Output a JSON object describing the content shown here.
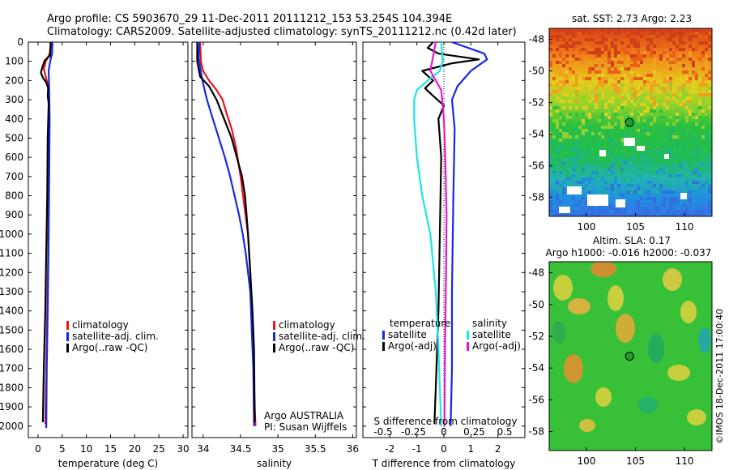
{
  "header": {
    "title_line1": "Argo profile: CS 5903670_29 11-Dec-2011 20111212_153 53.254S 104.394E",
    "title_line2": "Climatology: CARS2009. Satellite-adjusted climatology: synTS_20111212.nc (0.42d later)"
  },
  "credit": "©IMOS 18-Dec-2011 17:00:40",
  "colors": {
    "climatology": "#e8141e",
    "satellite": "#1528e6",
    "argo": "#000000",
    "cyan": "#19e6e6",
    "magenta": "#e619d2"
  },
  "chart_data": [
    {
      "type": "line",
      "name": "temperature-profile",
      "xlabel": "temperature (deg C)",
      "xlim": [
        -2,
        31
      ],
      "xticks": [
        "0",
        "5",
        "10",
        "15",
        "20",
        "25",
        "30"
      ],
      "ylim": [
        0,
        2060
      ],
      "yticks": [
        "0",
        "100",
        "200",
        "300",
        "400",
        "500",
        "600",
        "700",
        "800",
        "900",
        "1000",
        "1100",
        "1200",
        "1300",
        "1400",
        "1500",
        "1600",
        "1700",
        "1800",
        "1900",
        "2000"
      ],
      "legend": [
        "climatology",
        "satellite-adj. clim.",
        "Argo(..raw -QC)"
      ],
      "series": [
        {
          "name": "climatology",
          "color": "#e8141e",
          "points": [
            [
              2.7,
              0
            ],
            [
              2.4,
              60
            ],
            [
              1.6,
              100
            ],
            [
              1.2,
              140
            ],
            [
              1.6,
              180
            ],
            [
              2.0,
              220
            ],
            [
              2.3,
              300
            ],
            [
              2.3,
              500
            ],
            [
              2.2,
              800
            ],
            [
              2.1,
              1100
            ],
            [
              1.9,
              1400
            ],
            [
              1.7,
              1700
            ],
            [
              1.5,
              1990
            ]
          ]
        },
        {
          "name": "satellite-adj. clim.",
          "color": "#1528e6",
          "points": [
            [
              3.0,
              0
            ],
            [
              2.9,
              60
            ],
            [
              2.5,
              100
            ],
            [
              2.2,
              150
            ],
            [
              2.3,
              250
            ],
            [
              2.4,
              400
            ],
            [
              2.3,
              700
            ],
            [
              2.2,
              1000
            ],
            [
              2.0,
              1400
            ],
            [
              1.8,
              1700
            ],
            [
              1.7,
              2010
            ]
          ]
        },
        {
          "name": "Argo(..raw -QC)",
          "color": "#000000",
          "points": [
            [
              2.6,
              0
            ],
            [
              2.5,
              70
            ],
            [
              1.4,
              95
            ],
            [
              0.9,
              130
            ],
            [
              0.6,
              160
            ],
            [
              1.0,
              185
            ],
            [
              1.7,
              210
            ],
            [
              2.1,
              240
            ],
            [
              2.0,
              280
            ],
            [
              2.2,
              320
            ],
            [
              2.0,
              500
            ],
            [
              1.9,
              800
            ],
            [
              1.7,
              1100
            ],
            [
              1.5,
              1400
            ],
            [
              1.2,
              1700
            ],
            [
              1.0,
              1980
            ]
          ]
        }
      ]
    },
    {
      "type": "line",
      "name": "salinity-profile",
      "xlabel": "salinity",
      "xlim": [
        33.85,
        36.05
      ],
      "xticks": [
        "34",
        "34.5",
        "35",
        "35.5",
        "36"
      ],
      "ylim": [
        0,
        2060
      ],
      "legend": [
        "climatology",
        "satellite-adj. clim.",
        "Argo(..raw -QC)"
      ],
      "annotation": [
        "Argo AUSTRALIA",
        "PI: Susan Wijffels"
      ],
      "series": [
        {
          "name": "climatology",
          "color": "#e8141e",
          "points": [
            [
              33.96,
              0
            ],
            [
              33.97,
              100
            ],
            [
              34.0,
              150
            ],
            [
              34.08,
              200
            ],
            [
              34.18,
              250
            ],
            [
              34.26,
              300
            ],
            [
              34.32,
              380
            ],
            [
              34.38,
              450
            ],
            [
              34.44,
              550
            ],
            [
              34.5,
              700
            ],
            [
              34.55,
              850
            ],
            [
              34.6,
              1000
            ],
            [
              34.63,
              1200
            ],
            [
              34.66,
              1500
            ],
            [
              34.68,
              1800
            ],
            [
              34.7,
              2000
            ]
          ]
        },
        {
          "name": "satellite-adj. clim.",
          "color": "#1528e6",
          "points": [
            [
              33.95,
              0
            ],
            [
              33.94,
              80
            ],
            [
              33.99,
              200
            ],
            [
              34.05,
              300
            ],
            [
              34.13,
              400
            ],
            [
              34.21,
              500
            ],
            [
              34.29,
              600
            ],
            [
              34.36,
              700
            ],
            [
              34.42,
              800
            ],
            [
              34.48,
              900
            ],
            [
              34.53,
              1000
            ],
            [
              34.57,
              1100
            ],
            [
              34.6,
              1200
            ],
            [
              34.63,
              1300
            ],
            [
              34.65,
              1500
            ],
            [
              34.67,
              1700
            ],
            [
              34.68,
              2000
            ]
          ]
        },
        {
          "name": "Argo(..raw -QC)",
          "color": "#000000",
          "points": [
            [
              33.92,
              0
            ],
            [
              33.92,
              100
            ],
            [
              33.96,
              180
            ],
            [
              34.08,
              230
            ],
            [
              34.18,
              300
            ],
            [
              34.28,
              400
            ],
            [
              34.38,
              500
            ],
            [
              34.45,
              600
            ],
            [
              34.52,
              700
            ],
            [
              34.56,
              800
            ],
            [
              34.58,
              900
            ],
            [
              34.6,
              1000
            ],
            [
              34.63,
              1200
            ],
            [
              34.66,
              1400
            ],
            [
              34.68,
              1600
            ],
            [
              34.69,
              1980
            ]
          ]
        }
      ]
    },
    {
      "type": "line",
      "name": "difference-profile",
      "xlabel": "T difference from climatology",
      "xlim": [
        -3,
        3
      ],
      "xticks": [
        "-2",
        "-1",
        "0",
        "1",
        "2"
      ],
      "xlabel2": "S difference from climatology",
      "xticks2": [
        "-0.5",
        "-0.25",
        "0",
        "0.25",
        "0.5"
      ],
      "ylim": [
        0,
        2060
      ],
      "legend_headings": [
        "temperature",
        "salinity"
      ],
      "legend": [
        "satellite",
        "Argo(-adj)",
        "satellite",
        "Argo(-adj)"
      ],
      "series": [
        {
          "name": "T satellite",
          "color": "#1528e6",
          "points": [
            [
              0.3,
              0
            ],
            [
              1.5,
              60
            ],
            [
              1.6,
              90
            ],
            [
              1.0,
              150
            ],
            [
              0.5,
              230
            ],
            [
              0.3,
              300
            ],
            [
              0.4,
              450
            ],
            [
              0.35,
              800
            ],
            [
              0.3,
              1300
            ],
            [
              0.3,
              1700
            ],
            [
              0.25,
              2000
            ]
          ]
        },
        {
          "name": "T Argo(-adj)",
          "color": "#000000",
          "points": [
            [
              -0.4,
              0
            ],
            [
              -0.6,
              30
            ],
            [
              -0.2,
              60
            ],
            [
              1.3,
              90
            ],
            [
              0.3,
              110
            ],
            [
              -0.8,
              150
            ],
            [
              -0.4,
              200
            ],
            [
              -0.7,
              240
            ],
            [
              -0.4,
              280
            ],
            [
              0.0,
              330
            ],
            [
              -0.2,
              400
            ],
            [
              -0.1,
              600
            ],
            [
              -0.15,
              1000
            ],
            [
              -0.2,
              1400
            ],
            [
              -0.3,
              1800
            ],
            [
              -0.35,
              1990
            ]
          ]
        },
        {
          "name": "S satellite",
          "color": "#19e6e6",
          "points": [
            [
              -0.1,
              0
            ],
            [
              -0.05,
              100
            ],
            [
              -0.15,
              150
            ],
            [
              -0.6,
              200
            ],
            [
              -1.0,
              250
            ],
            [
              -1.1,
              300
            ],
            [
              -1.1,
              400
            ],
            [
              -1.05,
              500
            ],
            [
              -1.0,
              600
            ],
            [
              -0.8,
              800
            ],
            [
              -0.5,
              1000
            ],
            [
              -0.3,
              1300
            ],
            [
              -0.2,
              1600
            ],
            [
              -0.1,
              2000
            ]
          ]
        },
        {
          "name": "S Argo(-adj)",
          "color": "#e619d2",
          "points": [
            [
              -0.3,
              0
            ],
            [
              -0.5,
              150
            ],
            [
              -0.1,
              250
            ],
            [
              0.0,
              400
            ],
            [
              0.05,
              600
            ],
            [
              0.1,
              900
            ],
            [
              0.08,
              1200
            ],
            [
              0.05,
              1500
            ],
            [
              0.03,
              1800
            ],
            [
              0.02,
              2000
            ]
          ]
        }
      ]
    },
    {
      "type": "heatmap",
      "name": "sst-map",
      "title": "sat. SST: 2.73 Argo: 2.23",
      "xticks": [
        "100",
        "105",
        "110"
      ],
      "yticks": [
        "-48",
        "-50",
        "-52",
        "-54",
        "-56",
        "-58"
      ],
      "xlim": [
        96.2,
        112.8
      ],
      "ylim": [
        -59.2,
        -47.3
      ],
      "marker": {
        "lon": 104.394,
        "lat": -53.254
      }
    },
    {
      "type": "heatmap",
      "name": "sla-map",
      "title_line1": "Altim. SLA: 0.17",
      "title_line2": "Argo h1000: -0.016 h2000: -0.037",
      "xticks": [
        "100",
        "105",
        "110"
      ],
      "yticks": [
        "-48",
        "-50",
        "-52",
        "-54",
        "-56",
        "-58"
      ],
      "xlim": [
        96.2,
        112.8
      ],
      "ylim": [
        -59.2,
        -47.3
      ],
      "marker": {
        "lon": 104.394,
        "lat": -53.254
      }
    }
  ]
}
